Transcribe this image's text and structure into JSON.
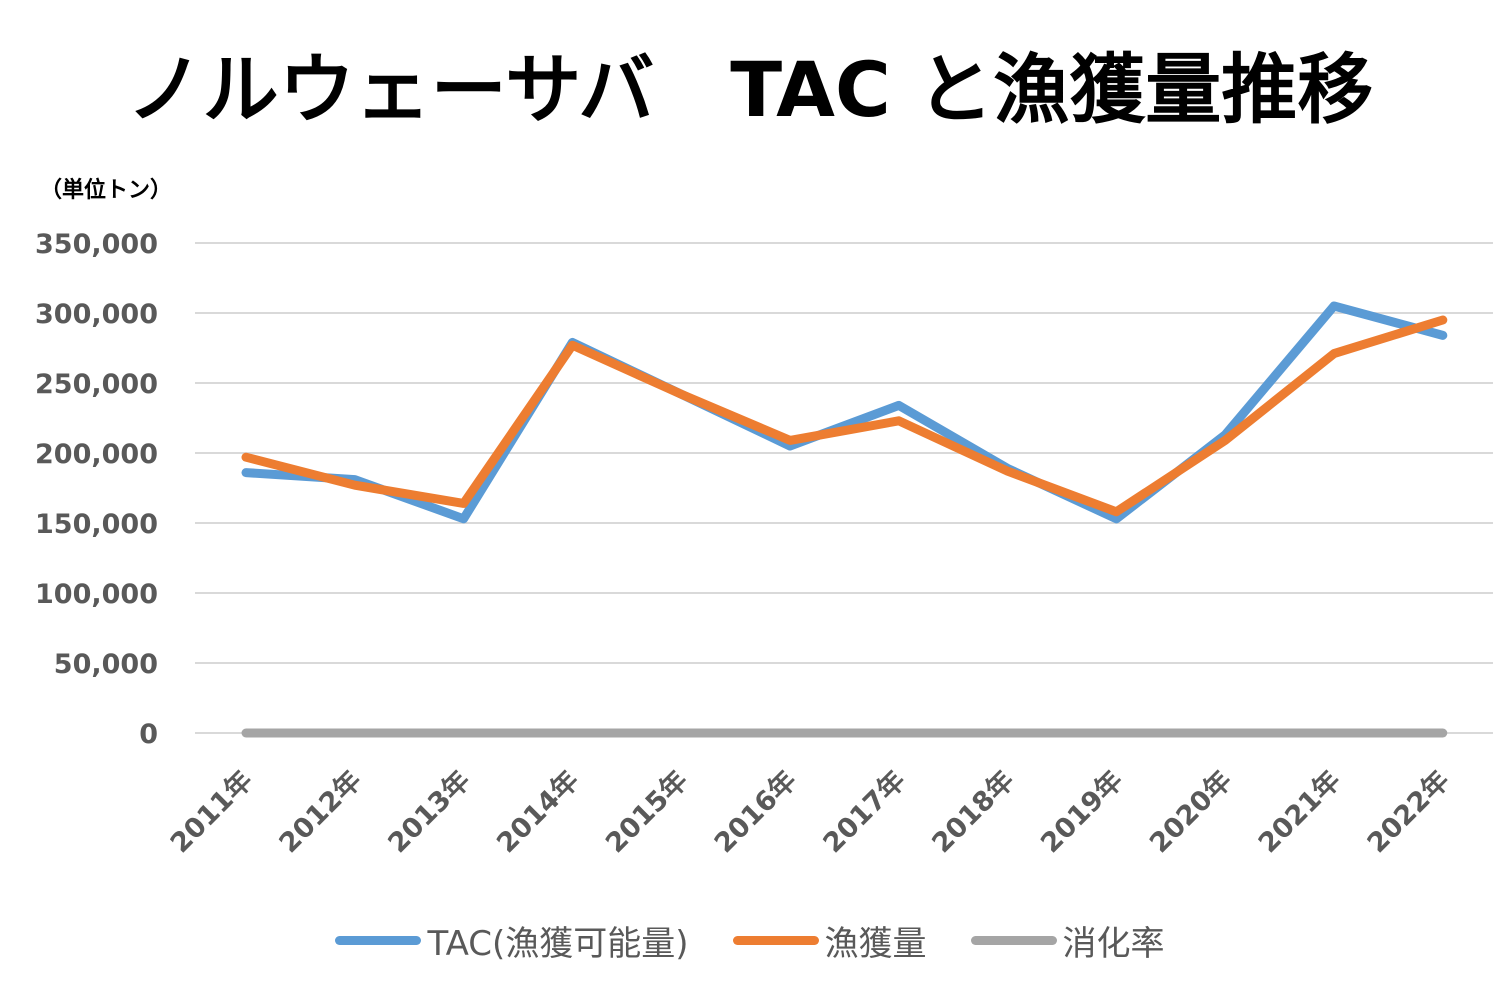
{
  "chart_data": {
    "type": "line",
    "title": "ノルウェーサバ　TAC と漁獲量推移",
    "unit_label": "（単位トン）",
    "categories": [
      "2011年",
      "2012年",
      "2013年",
      "2014年",
      "2015年",
      "2016年",
      "2017年",
      "2018年",
      "2019年",
      "2020年",
      "2021年",
      "2022年"
    ],
    "series": [
      {
        "name": "TAC(漁獲可能量)",
        "color": "#5B9BD5",
        "values": [
          186000,
          181000,
          153000,
          279000,
          242000,
          205000,
          234000,
          189000,
          153000,
          213000,
          305000,
          284000
        ]
      },
      {
        "name": "漁獲量",
        "color": "#ED7D31",
        "values": [
          197000,
          177000,
          164000,
          277000,
          242000,
          209000,
          223000,
          187000,
          158000,
          209000,
          271000,
          295000
        ]
      },
      {
        "name": "消化率",
        "color": "#A5A5A5",
        "values": [
          1,
          1,
          1,
          1,
          1,
          1,
          1,
          1,
          1,
          1,
          1,
          1
        ]
      }
    ],
    "ylim": [
      0,
      350000
    ],
    "yticks": [
      "0",
      "50,000",
      "100,000",
      "150,000",
      "200,000",
      "250,000",
      "300,000",
      "350,000"
    ],
    "grid": true,
    "legend_position": "bottom"
  }
}
